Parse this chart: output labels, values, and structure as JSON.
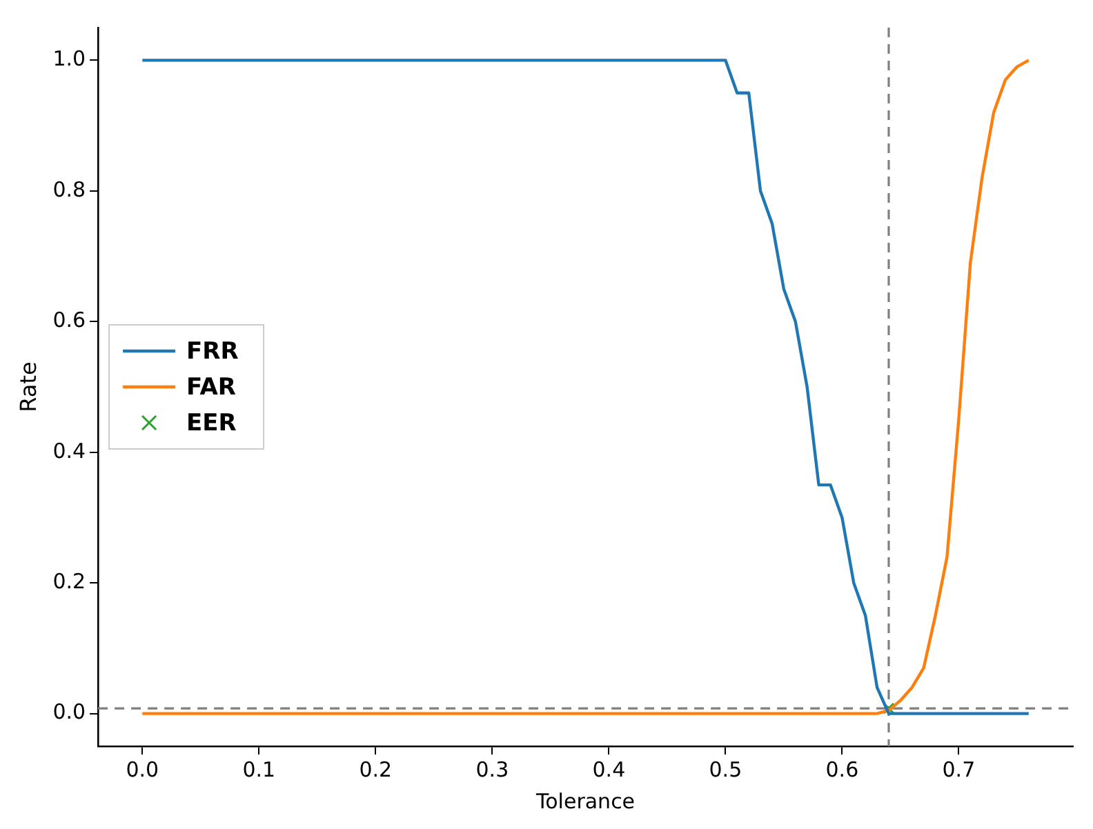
{
  "chart_data": {
    "type": "line",
    "xlabel": "Tolerance",
    "ylabel": "Rate",
    "xlim": [
      -0.038,
      0.798
    ],
    "ylim": [
      -0.05,
      1.05
    ],
    "xticks": [
      {
        "value": 0,
        "label": "0.0"
      },
      0.1,
      0.2,
      0.3,
      0.4,
      0.5,
      0.6,
      0.7
    ],
    "yticks": [
      {
        "value": 0,
        "label": "0.0"
      },
      0.2,
      0.4,
      0.6,
      0.8,
      {
        "value": 1,
        "label": "1.0"
      }
    ],
    "series": [
      {
        "name": "FRR",
        "color": "#1f77b4",
        "x": [
          0,
          0.5,
          0.51,
          0.52,
          0.53,
          0.54,
          0.55,
          0.56,
          0.57,
          0.58,
          0.59,
          0.6,
          0.61,
          0.62,
          0.63,
          0.64,
          0.76
        ],
        "values": [
          1,
          1,
          0.95,
          0.95,
          0.8,
          0.75,
          0.65,
          0.6,
          0.5,
          0.35,
          0.35,
          0.3,
          0.2,
          0.15,
          0.04,
          0,
          0
        ]
      },
      {
        "name": "FAR",
        "color": "#ff7f0e",
        "x": [
          0,
          0.63,
          0.64,
          0.65,
          0.66,
          0.67,
          0.68,
          0.69,
          0.7,
          0.71,
          0.72,
          0.73,
          0.74,
          0.75,
          0.76
        ],
        "values": [
          0,
          0,
          0.005,
          0.02,
          0.04,
          0.07,
          0.15,
          0.24,
          0.45,
          0.69,
          0.82,
          0.92,
          0.97,
          0.99,
          1
        ]
      },
      {
        "name": "EER",
        "type": "scatter",
        "marker": "cross",
        "color": "#2ca02c",
        "x": [
          0.64
        ],
        "values": [
          0.008
        ]
      }
    ],
    "ref_lines": [
      {
        "axis": "x",
        "value": 0.64,
        "color": "#808080",
        "line_style": "dashed"
      },
      {
        "axis": "y",
        "value": 0.008,
        "color": "#808080",
        "line_style": "dashed"
      }
    ],
    "grid": false,
    "legend": "left",
    "marker": "none",
    "line_style": "solid"
  }
}
